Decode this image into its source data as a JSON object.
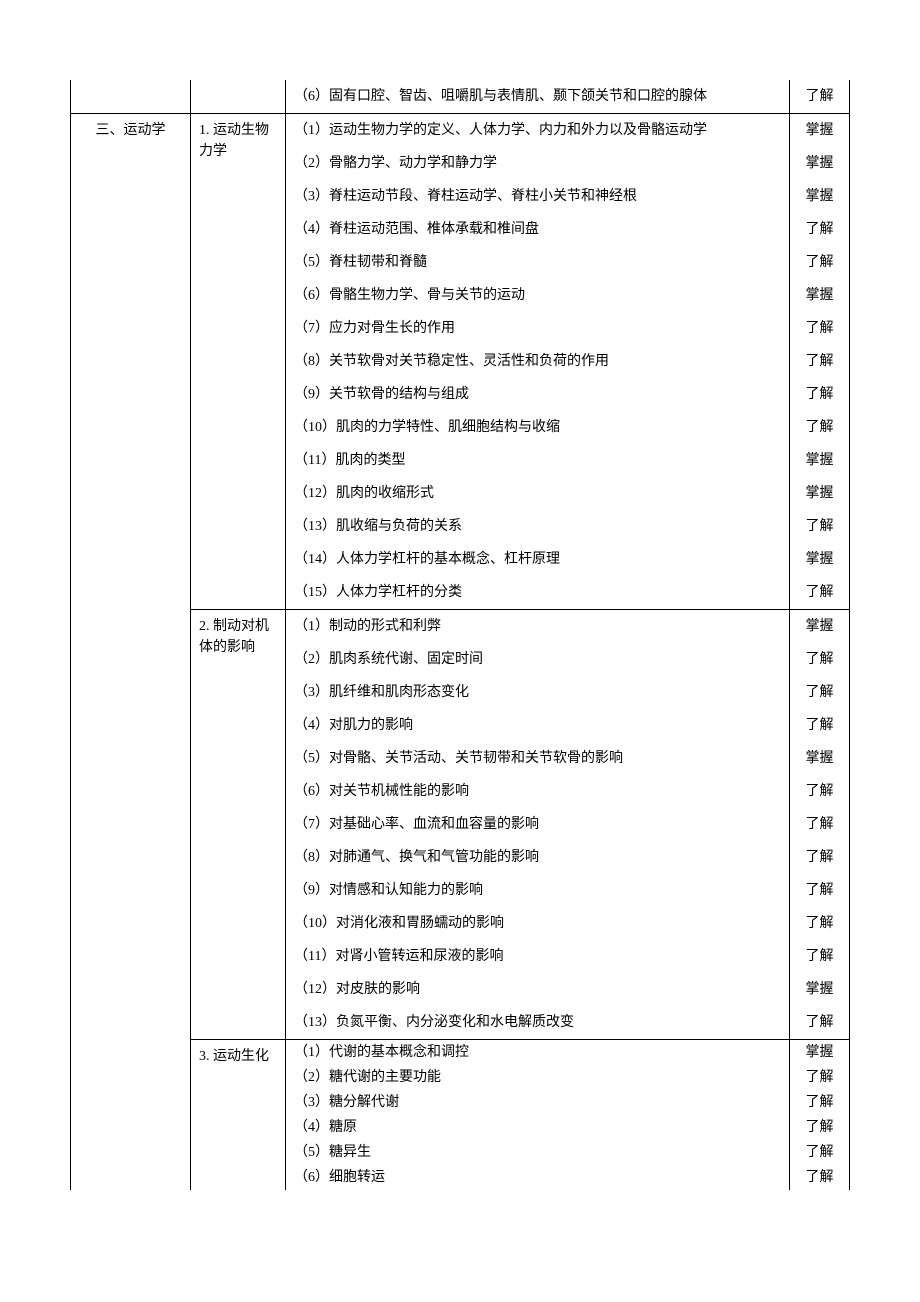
{
  "font_family": "SimSun",
  "font_size_pt": 10.5,
  "text_color": "#000000",
  "border_color": "#000000",
  "background_color": "#ffffff",
  "sections": [
    {
      "col1": "",
      "col2": "",
      "rows": [
        {
          "c3": "（6）固有口腔、智齿、咀嚼肌与表情肌、颞下颌关节和口腔的腺体",
          "c4": "了解"
        }
      ]
    },
    {
      "col1": "三、运动学",
      "col2": "1. 运动生物力学",
      "rows": [
        {
          "c3": "（1）运动生物力学的定义、人体力学、内力和外力以及骨骼运动学",
          "c4": "掌握"
        },
        {
          "c3": "（2）骨骼力学、动力学和静力学",
          "c4": "掌握"
        },
        {
          "c3": "（3）脊柱运动节段、脊柱运动学、脊柱小关节和神经根",
          "c4": "掌握"
        },
        {
          "c3": "（4）脊柱运动范围、椎体承载和椎间盘",
          "c4": "了解"
        },
        {
          "c3": "（5）脊柱韧带和脊髓",
          "c4": "了解"
        },
        {
          "c3": "（6）骨骼生物力学、骨与关节的运动",
          "c4": "掌握"
        },
        {
          "c3": "（7）应力对骨生长的作用",
          "c4": "了解"
        },
        {
          "c3": "（8）关节软骨对关节稳定性、灵活性和负荷的作用",
          "c4": "了解"
        },
        {
          "c3": "（9）关节软骨的结构与组成",
          "c4": "了解"
        },
        {
          "c3": "（10）肌肉的力学特性、肌细胞结构与收缩",
          "c4": "了解"
        },
        {
          "c3": "（11）肌肉的类型",
          "c4": "掌握"
        },
        {
          "c3": "（12）肌肉的收缩形式",
          "c4": "掌握"
        },
        {
          "c3": "（13）肌收缩与负荷的关系",
          "c4": "了解"
        },
        {
          "c3": "（14）人体力学杠杆的基本概念、杠杆原理",
          "c4": "掌握"
        },
        {
          "c3": "（15）人体力学杠杆的分类",
          "c4": "了解"
        }
      ]
    },
    {
      "col1": "",
      "col2": "2. 制动对机体的影响",
      "rows": [
        {
          "c3": "（1）制动的形式和利弊",
          "c4": "掌握"
        },
        {
          "c3": "（2）肌肉系统代谢、固定时间",
          "c4": "了解"
        },
        {
          "c3": "（3）肌纤维和肌肉形态变化",
          "c4": "了解"
        },
        {
          "c3": "（4）对肌力的影响",
          "c4": "了解"
        },
        {
          "c3": "（5）对骨骼、关节活动、关节韧带和关节软骨的影响",
          "c4": "掌握"
        },
        {
          "c3": "（6）对关节机械性能的影响",
          "c4": "了解"
        },
        {
          "c3": "（7）对基础心率、血流和血容量的影响",
          "c4": "了解"
        },
        {
          "c3": "（8）对肺通气、换气和气管功能的影响",
          "c4": "了解"
        },
        {
          "c3": "（9）对情感和认知能力的影响",
          "c4": "了解"
        },
        {
          "c3": "（10）对消化液和胃肠蠕动的影响",
          "c4": "了解"
        },
        {
          "c3": "（11）对肾小管转运和尿液的影响",
          "c4": "了解"
        },
        {
          "c3": "（12）对皮肤的影响",
          "c4": "掌握"
        },
        {
          "c3": "（13）负氮平衡、内分泌变化和水电解质改变",
          "c4": "了解"
        }
      ]
    },
    {
      "col1": "",
      "col2": "3. 运动生化",
      "tight": true,
      "rows": [
        {
          "c3": "（1）代谢的基本概念和调控",
          "c4": "掌握"
        },
        {
          "c3": "（2）糖代谢的主要功能",
          "c4": "了解"
        },
        {
          "c3": "（3）糖分解代谢",
          "c4": "了解"
        },
        {
          "c3": "（4）糖原",
          "c4": "了解"
        },
        {
          "c3": "（5）糖异生",
          "c4": "了解"
        },
        {
          "c3": "（6）细胞转运",
          "c4": "了解"
        }
      ]
    }
  ]
}
